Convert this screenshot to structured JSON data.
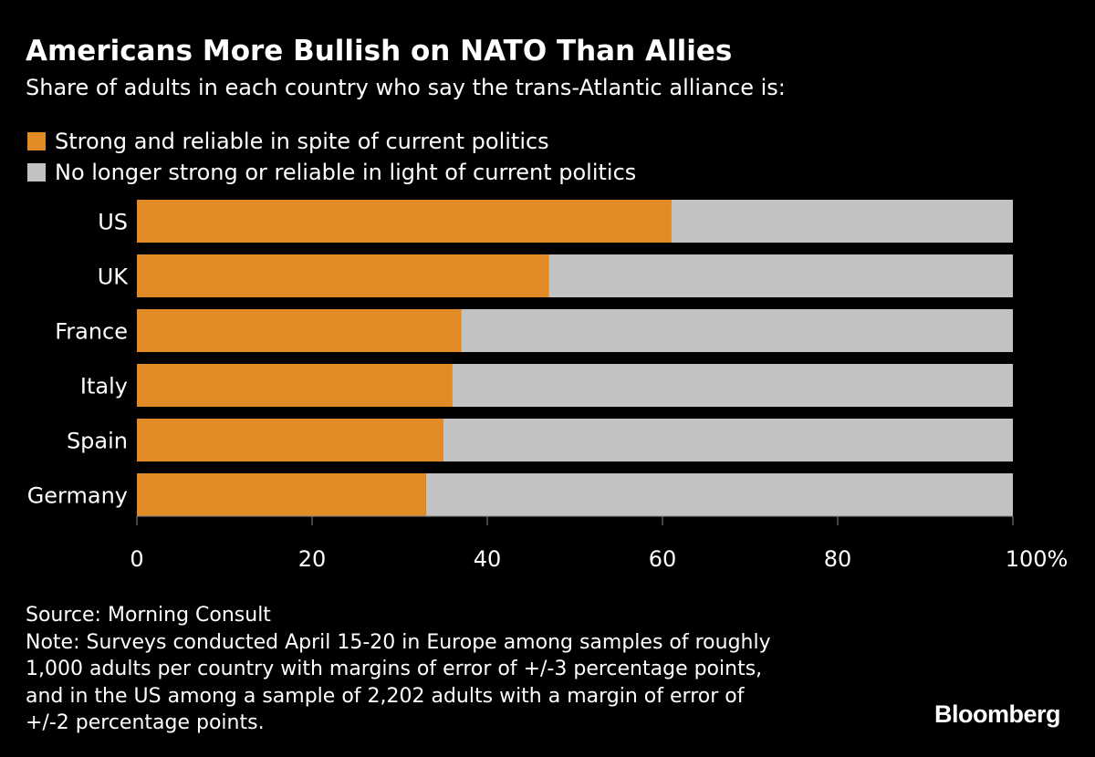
{
  "title": "Americans More Bullish on NATO Than Allies",
  "subtitle": "Share of adults in each country who say the trans-Atlantic alliance is:",
  "colors": {
    "background": "#000000",
    "strong": "#e08b26",
    "not_strong": "#c2c2c2",
    "text": "#ffffff",
    "axis": "#888888"
  },
  "chart_data": {
    "type": "bar",
    "orientation": "horizontal",
    "stacked": true,
    "categories": [
      "US",
      "UK",
      "France",
      "Italy",
      "Spain",
      "Germany"
    ],
    "series": [
      {
        "name": "Strong and reliable in spite of current politics",
        "values": [
          61,
          47,
          37,
          36,
          35,
          33
        ]
      },
      {
        "name": "No longer strong or reliable in light of current politics",
        "values": [
          39,
          53,
          63,
          64,
          65,
          67
        ]
      }
    ],
    "xlim": [
      0,
      100
    ],
    "xticks": [
      0,
      20,
      40,
      60,
      80,
      100
    ],
    "xtick_labels": [
      "0",
      "20",
      "40",
      "60",
      "80",
      "100%"
    ],
    "legend_position": "top-left",
    "grid": false
  },
  "footer": {
    "source": "Source: Morning Consult",
    "note_lines": [
      "Note: Surveys conducted April 15-20 in Europe among samples of roughly",
      "1,000 adults per country with margins of error of +/-3 percentage points,",
      "and in the US among a sample of 2,202 adults with a margin of error of",
      "+/-2 percentage points."
    ],
    "brand": "Bloomberg"
  }
}
